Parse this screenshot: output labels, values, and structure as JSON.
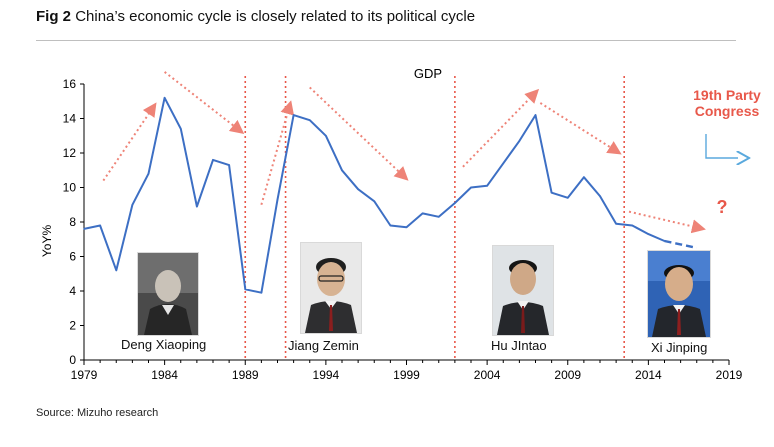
{
  "figure": {
    "label": "Fig 2",
    "title": "China’s economic cycle is closely related to its political cycle",
    "source": "Source: Mizuho research"
  },
  "chart_data": {
    "type": "line",
    "title": "GDP",
    "xlabel": "",
    "ylabel": "YoY%",
    "xlim": [
      1979,
      2019
    ],
    "ylim": [
      0,
      16
    ],
    "x_ticks": [
      1979,
      1984,
      1989,
      1994,
      1999,
      2004,
      2009,
      2014,
      2019
    ],
    "y_ticks": [
      0,
      2,
      4,
      6,
      8,
      10,
      12,
      14,
      16
    ],
    "grid": false,
    "series": [
      {
        "color": "#3d6fc4",
        "points": [
          [
            1979,
            7.6
          ],
          [
            1980,
            7.8
          ],
          [
            1981,
            5.2
          ],
          [
            1982,
            9.0
          ],
          [
            1983,
            10.8
          ],
          [
            1984,
            15.2
          ],
          [
            1985,
            13.4
          ],
          [
            1986,
            8.9
          ],
          [
            1987,
            11.6
          ],
          [
            1988,
            11.3
          ],
          [
            1989,
            4.1
          ],
          [
            1990,
            3.9
          ],
          [
            1991,
            9.3
          ],
          [
            1992,
            14.2
          ],
          [
            1993,
            13.9
          ],
          [
            1994,
            13.0
          ],
          [
            1995,
            11.0
          ],
          [
            1996,
            9.9
          ],
          [
            1997,
            9.2
          ],
          [
            1998,
            7.8
          ],
          [
            1999,
            7.7
          ],
          [
            2000,
            8.5
          ],
          [
            2001,
            8.3
          ],
          [
            2002,
            9.1
          ],
          [
            2003,
            10.0
          ],
          [
            2004,
            10.1
          ],
          [
            2005,
            11.4
          ],
          [
            2006,
            12.7
          ],
          [
            2007,
            14.2
          ],
          [
            2008,
            9.7
          ],
          [
            2009,
            9.4
          ],
          [
            2010,
            10.6
          ],
          [
            2011,
            9.5
          ],
          [
            2012,
            7.9
          ],
          [
            2013,
            7.8
          ],
          [
            2014,
            7.3
          ],
          [
            2015,
            6.9
          ]
        ],
        "forecast_points": [
          [
            2015,
            6.9
          ],
          [
            2016,
            6.7
          ],
          [
            2017,
            6.5
          ]
        ]
      }
    ],
    "leadership_changes": [
      1989,
      1991.5,
      2002,
      2012.5
    ],
    "trend_arrows": [
      {
        "from": [
          1980.2,
          10.4
        ],
        "to": [
          1983.4,
          14.8
        ]
      },
      {
        "from": [
          1984.0,
          16.7
        ],
        "to": [
          1988.8,
          13.2
        ]
      },
      {
        "from": [
          1990.0,
          9.0
        ],
        "to": [
          1991.8,
          14.9
        ]
      },
      {
        "from": [
          1993.0,
          15.8
        ],
        "to": [
          1999.0,
          10.5
        ]
      },
      {
        "from": [
          2002.5,
          11.2
        ],
        "to": [
          2007.1,
          15.6
        ]
      },
      {
        "from": [
          2007.3,
          14.9
        ],
        "to": [
          2012.2,
          12.0
        ]
      },
      {
        "from": [
          2012.8,
          8.6
        ],
        "to": [
          2017.4,
          7.6
        ]
      }
    ],
    "annotations": {
      "event_line1": "19th Party",
      "event_line2": "Congress",
      "question": "?"
    },
    "leaders": [
      {
        "name": "Deng Xiaoping"
      },
      {
        "name": "Jiang Zemin"
      },
      {
        "name": "Hu JInta​o"
      },
      {
        "name": "Xi Jinping"
      }
    ],
    "colors": {
      "series": "#3d6fc4",
      "highlight": "#e8584a",
      "trend_arrow": "#ee8377",
      "arrow_blue": "#5aa9dd"
    }
  }
}
